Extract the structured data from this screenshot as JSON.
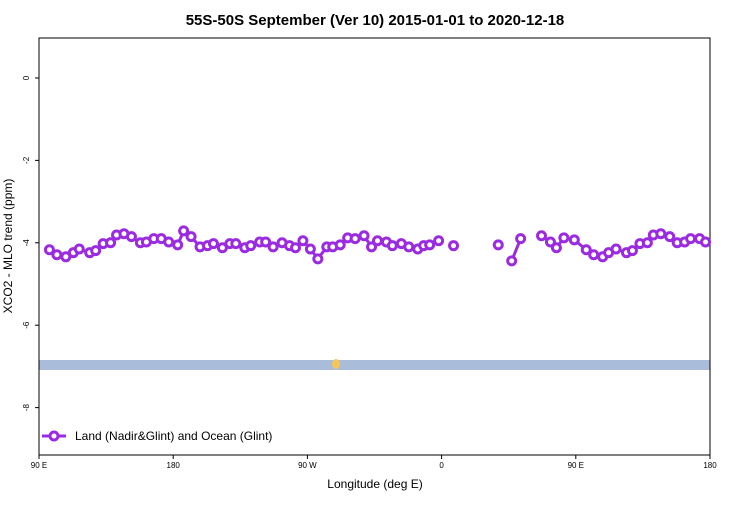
{
  "chart_data": {
    "type": "line",
    "title": "55S-50S September (Ver 10)   2015-01-01 to 2020-12-18",
    "x_label": "Longitude (deg E)",
    "y_label": "XCO2 - MLO trend (ppm)",
    "xlim": [
      90,
      540
    ],
    "ylim": [
      -9.15,
      0.97
    ],
    "xticks": [
      {
        "value": 90,
        "label": "90 E"
      },
      180,
      {
        "value": 270,
        "label": "90 W"
      },
      {
        "value": 360,
        "label": "0"
      },
      {
        "value": 450,
        "label": "90 E"
      },
      {
        "value": 540,
        "label": "180"
      }
    ],
    "yticks": [
      0,
      -2,
      -4,
      -6,
      -8
    ],
    "legend": "bottom-left",
    "series": [
      {
        "name": "Land (Nadir&Glint) and Ocean (Glint)",
        "color": "#9b2be0",
        "x": [
          97,
          102,
          108,
          113,
          117,
          124,
          128,
          133,
          138,
          142,
          147,
          152,
          158,
          162,
          167,
          172,
          177,
          183,
          187,
          192,
          198,
          203,
          207,
          213,
          218,
          222,
          228,
          232,
          238,
          242,
          247,
          253,
          258,
          262,
          267,
          272,
          277,
          283,
          287,
          292,
          297,
          302,
          308,
          313,
          317,
          323,
          327,
          333,
          338,
          344,
          348,
          352,
          358,
          null,
          368,
          null,
          398,
          null,
          407,
          413,
          null,
          427,
          433,
          437,
          442,
          449,
          457,
          462,
          468,
          472,
          477,
          484,
          488,
          493,
          498,
          502,
          507,
          513,
          518,
          523,
          527,
          533,
          537
        ],
        "values": [
          -4.17,
          -4.29,
          -4.34,
          -4.24,
          -4.15,
          -4.24,
          -4.19,
          -4.02,
          -4.0,
          -3.81,
          -3.78,
          -3.85,
          -4.0,
          -3.98,
          -3.9,
          -3.9,
          -3.98,
          -4.05,
          -3.71,
          -3.85,
          -4.1,
          -4.07,
          -4.02,
          -4.12,
          -4.02,
          -4.02,
          -4.12,
          -4.07,
          -3.98,
          -3.98,
          -4.1,
          -4.0,
          -4.07,
          -4.12,
          -3.95,
          -4.15,
          -4.39,
          -4.1,
          -4.1,
          -4.05,
          -3.88,
          -3.9,
          -3.83,
          -4.1,
          -3.95,
          -3.98,
          -4.07,
          -4.02,
          -4.1,
          -4.15,
          -4.07,
          -4.05,
          -3.95,
          null,
          -4.07,
          null,
          -4.05,
          null,
          -4.44,
          -3.9,
          null,
          -3.83,
          -3.98,
          -4.12,
          -3.88,
          -3.93,
          -4.17,
          -4.29,
          -4.34,
          -4.24,
          -4.15,
          -4.24,
          -4.19,
          -4.02,
          -4.0,
          -3.81,
          -3.78,
          -3.85,
          -4.0,
          -3.98,
          -3.9,
          -3.9,
          -3.98
        ]
      }
    ]
  }
}
